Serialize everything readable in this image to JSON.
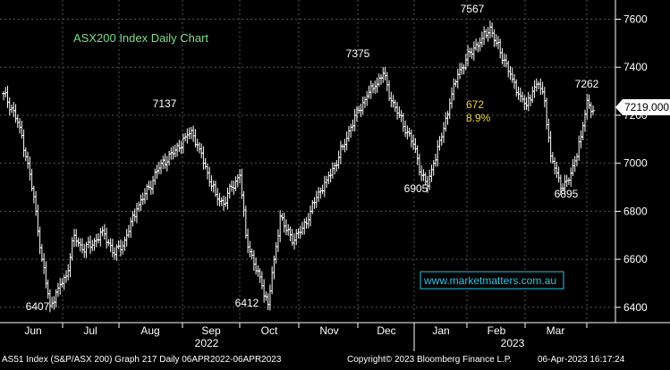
{
  "chart_data": {
    "type": "ohlc",
    "title": "ASX200 Index Daily Chart",
    "watermark": "www.marketmatters.com.au",
    "last_price_label": "7219.000",
    "ylim": [
      6340,
      7680
    ],
    "y_ticks": [
      6400,
      6600,
      6800,
      7000,
      7200,
      7400,
      7600
    ],
    "month_labels": [
      "Jun",
      "Jul",
      "Aug",
      "Sep",
      "Oct",
      "Nov",
      "Dec",
      "Jan",
      "Feb",
      "Mar"
    ],
    "year_labels": [
      "2022",
      "2023"
    ],
    "annotations": [
      {
        "text": "6407",
        "value": 6407
      },
      {
        "text": "7137",
        "value": 7137
      },
      {
        "text": "6412",
        "value": 6412
      },
      {
        "text": "7375",
        "value": 7375
      },
      {
        "text": "6905",
        "value": 6905
      },
      {
        "text": "7567",
        "value": 7567
      },
      {
        "text": "6895",
        "value": 6895
      },
      {
        "text": "7262",
        "value": 7262
      }
    ],
    "move_annotation": {
      "points": "672",
      "percent": "8.9%"
    },
    "anchors": [
      [
        0,
        7290
      ],
      [
        4,
        7230
      ],
      [
        8,
        7150
      ],
      [
        12,
        7000
      ],
      [
        16,
        6800
      ],
      [
        19,
        6600
      ],
      [
        23,
        6407
      ],
      [
        27,
        6480
      ],
      [
        31,
        6530
      ],
      [
        35,
        6700
      ],
      [
        39,
        6640
      ],
      [
        44,
        6660
      ],
      [
        49,
        6720
      ],
      [
        55,
        6620
      ],
      [
        60,
        6680
      ],
      [
        66,
        6810
      ],
      [
        72,
        6900
      ],
      [
        78,
        7000
      ],
      [
        84,
        7040
      ],
      [
        90,
        7110
      ],
      [
        93,
        7137
      ],
      [
        97,
        7060
      ],
      [
        101,
        6960
      ],
      [
        105,
        6870
      ],
      [
        109,
        6830
      ],
      [
        113,
        6900
      ],
      [
        117,
        6950
      ],
      [
        120,
        6700
      ],
      [
        124,
        6580
      ],
      [
        128,
        6490
      ],
      [
        131,
        6412
      ],
      [
        134,
        6600
      ],
      [
        137,
        6780
      ],
      [
        140,
        6720
      ],
      [
        144,
        6680
      ],
      [
        148,
        6730
      ],
      [
        152,
        6800
      ],
      [
        156,
        6880
      ],
      [
        160,
        6930
      ],
      [
        164,
        6990
      ],
      [
        168,
        7070
      ],
      [
        172,
        7150
      ],
      [
        176,
        7220
      ],
      [
        180,
        7280
      ],
      [
        184,
        7320
      ],
      [
        188,
        7375
      ],
      [
        192,
        7260
      ],
      [
        196,
        7200
      ],
      [
        200,
        7130
      ],
      [
        204,
        7060
      ],
      [
        207,
        6950
      ],
      [
        210,
        6905
      ],
      [
        213,
        7000
      ],
      [
        217,
        7110
      ],
      [
        221,
        7250
      ],
      [
        225,
        7370
      ],
      [
        229,
        7430
      ],
      [
        233,
        7480
      ],
      [
        237,
        7520
      ],
      [
        241,
        7567
      ],
      [
        244,
        7500
      ],
      [
        248,
        7430
      ],
      [
        252,
        7350
      ],
      [
        256,
        7280
      ],
      [
        259,
        7240
      ],
      [
        262,
        7300
      ],
      [
        265,
        7330
      ],
      [
        268,
        7260
      ],
      [
        271,
        7030
      ],
      [
        274,
        6960
      ],
      [
        277,
        6895
      ],
      [
        280,
        6930
      ],
      [
        283,
        7010
      ],
      [
        286,
        7110
      ],
      [
        289,
        7262
      ],
      [
        292,
        7219
      ]
    ]
  }
}
